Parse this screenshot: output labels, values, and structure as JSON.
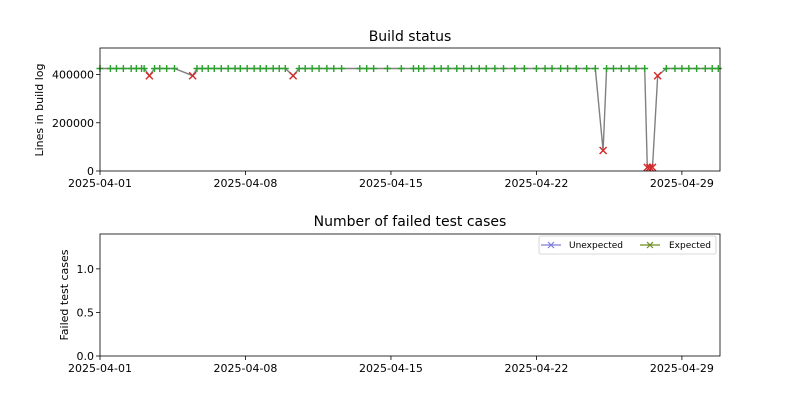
{
  "chart_data": [
    {
      "type": "line",
      "title": "Build status",
      "xlabel": "",
      "ylabel": "Lines in build log",
      "x_axis": "date",
      "xlim": [
        "2025-04-01",
        "2025-04-30T20:00"
      ],
      "ylim": [
        0,
        510000
      ],
      "x_ticks": [
        "2025-04-01",
        "2025-04-08",
        "2025-04-15",
        "2025-04-22",
        "2025-04-29"
      ],
      "y_ticks": [
        0,
        200000,
        400000
      ],
      "y_tick_labels": [
        "0",
        "200000",
        "400000"
      ],
      "grid": false,
      "series": [
        {
          "color": "#808080",
          "points": [
            [
              "2025-04-01T00:00",
              425000
            ],
            [
              "2025-04-01T12:00",
              425000
            ],
            [
              "2025-04-01T19:00",
              425000
            ],
            [
              "2025-04-02T03:00",
              425000
            ],
            [
              "2025-04-02T12:00",
              425000
            ],
            [
              "2025-04-02T18:00",
              425000
            ],
            [
              "2025-04-03T00:00",
              425000
            ],
            [
              "2025-04-03T03:00",
              425000
            ],
            [
              "2025-04-03T09:00",
              395000
            ],
            [
              "2025-04-03T15:00",
              425000
            ],
            [
              "2025-04-03T21:00",
              425000
            ],
            [
              "2025-04-04T05:00",
              425000
            ],
            [
              "2025-04-04T14:00",
              425000
            ],
            [
              "2025-04-05T11:00",
              395000
            ],
            [
              "2025-04-05T16:00",
              425000
            ],
            [
              "2025-04-05T22:00",
              425000
            ],
            [
              "2025-04-06T05:00",
              425000
            ],
            [
              "2025-04-06T12:00",
              425000
            ],
            [
              "2025-04-06T20:00",
              425000
            ],
            [
              "2025-04-07T04:00",
              425000
            ],
            [
              "2025-04-07T12:00",
              425000
            ],
            [
              "2025-04-07T18:00",
              425000
            ],
            [
              "2025-04-08T02:00",
              425000
            ],
            [
              "2025-04-08T10:00",
              425000
            ],
            [
              "2025-04-08T17:00",
              425000
            ],
            [
              "2025-04-09T00:00",
              425000
            ],
            [
              "2025-04-09T08:00",
              425000
            ],
            [
              "2025-04-09T15:00",
              425000
            ],
            [
              "2025-04-09T22:00",
              425000
            ],
            [
              "2025-04-10T07:00",
              395000
            ],
            [
              "2025-04-10T14:00",
              425000
            ],
            [
              "2025-04-10T21:00",
              425000
            ],
            [
              "2025-04-11T05:00",
              425000
            ],
            [
              "2025-04-11T13:00",
              425000
            ],
            [
              "2025-04-11T22:00",
              425000
            ],
            [
              "2025-04-12T06:00",
              425000
            ],
            [
              "2025-04-12T15:00",
              425000
            ],
            [
              "2025-04-13T12:00",
              425000
            ],
            [
              "2025-04-13T20:00",
              425000
            ],
            [
              "2025-04-14T04:00",
              425000
            ],
            [
              "2025-04-14T20:00",
              425000
            ],
            [
              "2025-04-15T12:00",
              425000
            ],
            [
              "2025-04-16T02:00",
              425000
            ],
            [
              "2025-04-16T08:00",
              425000
            ],
            [
              "2025-04-16T14:00",
              425000
            ],
            [
              "2025-04-17T02:00",
              425000
            ],
            [
              "2025-04-17T10:00",
              425000
            ],
            [
              "2025-04-17T18:00",
              425000
            ],
            [
              "2025-04-18T04:00",
              425000
            ],
            [
              "2025-04-18T12:00",
              425000
            ],
            [
              "2025-04-18T21:00",
              425000
            ],
            [
              "2025-04-19T06:00",
              425000
            ],
            [
              "2025-04-19T14:00",
              425000
            ],
            [
              "2025-04-20T00:00",
              425000
            ],
            [
              "2025-04-20T10:00",
              425000
            ],
            [
              "2025-04-20T23:00",
              425000
            ],
            [
              "2025-04-21T10:00",
              425000
            ],
            [
              "2025-04-22T00:00",
              425000
            ],
            [
              "2025-04-22T10:00",
              425000
            ],
            [
              "2025-04-22T18:00",
              425000
            ],
            [
              "2025-04-23T04:00",
              425000
            ],
            [
              "2025-04-23T12:00",
              425000
            ],
            [
              "2025-04-23T22:00",
              425000
            ],
            [
              "2025-04-24T10:00",
              425000
            ],
            [
              "2025-04-24T20:00",
              425000
            ],
            [
              "2025-04-25T05:00",
              85000
            ],
            [
              "2025-04-25T09:00",
              425000
            ],
            [
              "2025-04-25T17:00",
              425000
            ],
            [
              "2025-04-26T02:00",
              425000
            ],
            [
              "2025-04-26T11:00",
              425000
            ],
            [
              "2025-04-26T19:00",
              425000
            ],
            [
              "2025-04-27T05:00",
              425000
            ],
            [
              "2025-04-27T08:00",
              15000
            ],
            [
              "2025-04-27T11:00",
              15000
            ],
            [
              "2025-04-27T14:00",
              15000
            ],
            [
              "2025-04-27T20:00",
              395000
            ],
            [
              "2025-04-28T06:00",
              425000
            ],
            [
              "2025-04-28T16:00",
              425000
            ],
            [
              "2025-04-29T00:00",
              425000
            ],
            [
              "2025-04-29T08:00",
              425000
            ],
            [
              "2025-04-29T17:00",
              425000
            ],
            [
              "2025-04-30T03:00",
              425000
            ],
            [
              "2025-04-30T11:00",
              425000
            ],
            [
              "2025-04-30T18:00",
              425000
            ]
          ]
        }
      ],
      "markers": {
        "success": {
          "marker": "plus",
          "color": "#2ca02c"
        },
        "failure": {
          "marker": "x",
          "color": "#d62728"
        },
        "failure_points": [
          [
            "2025-04-03T09:00",
            395000
          ],
          [
            "2025-04-05T11:00",
            395000
          ],
          [
            "2025-04-10T07:00",
            395000
          ],
          [
            "2025-04-25T05:00",
            85000
          ],
          [
            "2025-04-27T08:00",
            15000
          ],
          [
            "2025-04-27T11:00",
            15000
          ],
          [
            "2025-04-27T14:00",
            15000
          ],
          [
            "2025-04-27T20:00",
            395000
          ]
        ]
      }
    },
    {
      "type": "line",
      "title": "Number of failed test cases",
      "xlabel": "",
      "ylabel": "Failed test cases",
      "x_axis": "date",
      "xlim": [
        "2025-04-01",
        "2025-04-30T20:00"
      ],
      "ylim": [
        0,
        1.4
      ],
      "x_ticks": [
        "2025-04-01",
        "2025-04-08",
        "2025-04-15",
        "2025-04-22",
        "2025-04-29"
      ],
      "y_ticks": [
        0,
        0.5,
        1.0
      ],
      "y_tick_labels": [
        "0.0",
        "0.5",
        "1.0"
      ],
      "grid": false,
      "legend_position": "top-right",
      "series": [
        {
          "name": "Unexpected",
          "color": "#7f7fd5",
          "marker": "x",
          "values": []
        },
        {
          "name": "Expected",
          "color": "#6b8e23",
          "marker": "x",
          "values": []
        }
      ]
    }
  ]
}
